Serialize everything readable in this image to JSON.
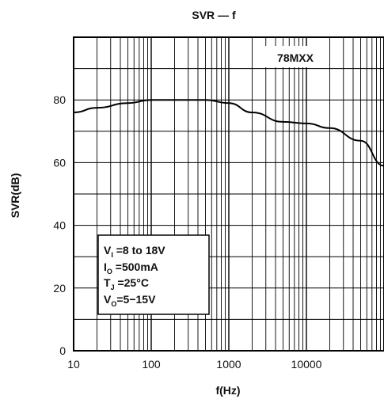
{
  "chart_data": {
    "type": "line",
    "title": "SVR — f",
    "xlabel": "f(Hz)",
    "ylabel": "SVR(dB)",
    "x_scale": "log",
    "xlim": [
      10,
      100000
    ],
    "ylim": [
      0,
      100
    ],
    "grid": true,
    "x_ticks": [
      {
        "value": 10,
        "label": "10"
      },
      {
        "value": 100,
        "label": "100"
      },
      {
        "value": 1000,
        "label": "1000"
      },
      {
        "value": 10000,
        "label": "10000"
      }
    ],
    "y_ticks": [
      {
        "value": 0,
        "label": "0"
      },
      {
        "value": 20,
        "label": "20"
      },
      {
        "value": 40,
        "label": "40"
      },
      {
        "value": 60,
        "label": "60"
      },
      {
        "value": 80,
        "label": "80"
      }
    ],
    "series": [
      {
        "name": "78MXX",
        "x": [
          10,
          20,
          50,
          100,
          200,
          500,
          1000,
          2000,
          5000,
          10000,
          20000,
          50000,
          100000
        ],
        "y": [
          76,
          77.5,
          79,
          80,
          80,
          80,
          79,
          76,
          73,
          72.5,
          71,
          67,
          59
        ]
      }
    ],
    "annotations": {
      "series_label": "78MXX",
      "conditions": [
        {
          "id": "vi",
          "main": "V",
          "sub": "I",
          "rest": " =8  to  18V"
        },
        {
          "id": "io",
          "main": "I",
          "sub": "O",
          "rest": " =500mA"
        },
        {
          "id": "tj",
          "main": "T",
          "sub": "J",
          "rest": " =25°C"
        },
        {
          "id": "vo",
          "main": "V",
          "sub": "O",
          "rest": "=5−15V"
        }
      ]
    }
  }
}
